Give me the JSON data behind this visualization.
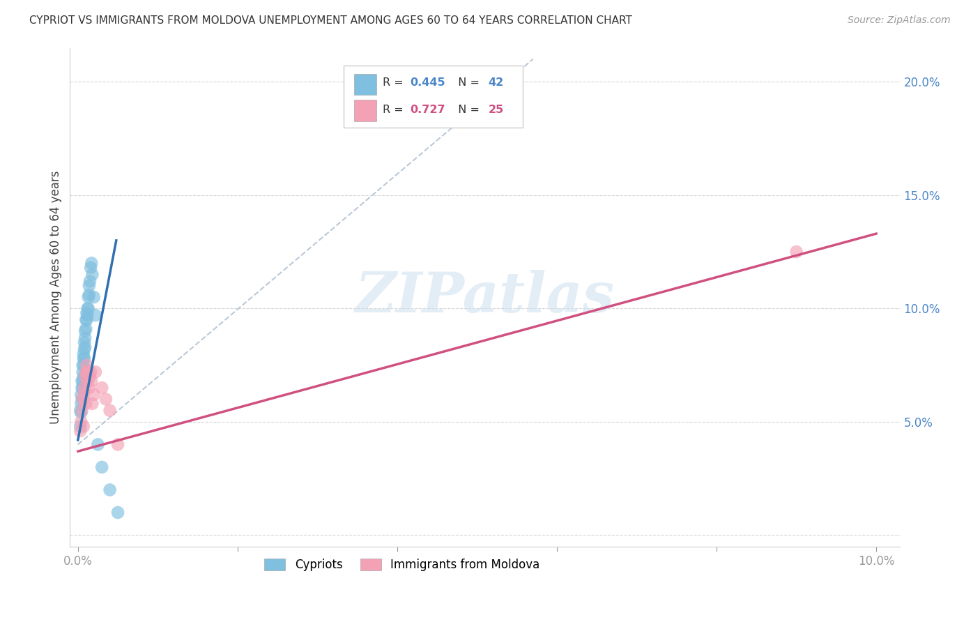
{
  "title": "CYPRIOT VS IMMIGRANTS FROM MOLDOVA UNEMPLOYMENT AMONG AGES 60 TO 64 YEARS CORRELATION CHART",
  "source": "Source: ZipAtlas.com",
  "ylabel": "Unemployment Among Ages 60 to 64 years",
  "xlim": [
    0,
    0.1
  ],
  "ylim": [
    0,
    0.21
  ],
  "xticks": [
    0.0,
    0.02,
    0.04,
    0.06,
    0.08,
    0.1
  ],
  "yticks": [
    0.0,
    0.05,
    0.1,
    0.15,
    0.2
  ],
  "watermark": "ZIPatlas",
  "cypriot_color": "#7fbfdf",
  "moldova_color": "#f4a0b5",
  "cypriot_line_color": "#3070b0",
  "moldova_line_color": "#d05080",
  "cypriot_R": 0.445,
  "cypriot_N": 42,
  "moldova_R": 0.727,
  "moldova_N": 25,
  "legend_label1": "Cypriots",
  "legend_label2": "Immigrants from Moldova",
  "background_color": "#ffffff",
  "grid_color": "#cccccc",
  "cypriot_x": [
    0.0003,
    0.0003,
    0.0004,
    0.0004,
    0.0004,
    0.0005,
    0.0005,
    0.0005,
    0.0006,
    0.0006,
    0.0006,
    0.0006,
    0.0007,
    0.0007,
    0.0007,
    0.0007,
    0.0008,
    0.0008,
    0.0008,
    0.0009,
    0.0009,
    0.0009,
    0.001,
    0.001,
    0.0011,
    0.0011,
    0.0012,
    0.0012,
    0.0013,
    0.0013,
    0.0014,
    0.0014,
    0.0015,
    0.0016,
    0.0017,
    0.0018,
    0.002,
    0.0022,
    0.0025,
    0.003,
    0.004,
    0.005
  ],
  "cypriot_y": [
    0.055,
    0.048,
    0.062,
    0.058,
    0.054,
    0.068,
    0.065,
    0.06,
    0.075,
    0.072,
    0.068,
    0.065,
    0.08,
    0.078,
    0.075,
    0.07,
    0.085,
    0.082,
    0.078,
    0.09,
    0.087,
    0.083,
    0.095,
    0.091,
    0.098,
    0.095,
    0.1,
    0.097,
    0.105,
    0.1,
    0.11,
    0.106,
    0.112,
    0.118,
    0.12,
    0.115,
    0.105,
    0.097,
    0.04,
    0.03,
    0.02,
    0.01
  ],
  "moldova_x": [
    0.0003,
    0.0004,
    0.0005,
    0.0006,
    0.0007,
    0.0007,
    0.0008,
    0.0009,
    0.001,
    0.001,
    0.0011,
    0.0012,
    0.0013,
    0.0014,
    0.0015,
    0.0016,
    0.0017,
    0.0018,
    0.002,
    0.0022,
    0.003,
    0.0035,
    0.004,
    0.005,
    0.09
  ],
  "moldova_y": [
    0.046,
    0.05,
    0.055,
    0.06,
    0.062,
    0.048,
    0.065,
    0.07,
    0.072,
    0.058,
    0.075,
    0.068,
    0.072,
    0.065,
    0.07,
    0.072,
    0.068,
    0.058,
    0.062,
    0.072,
    0.065,
    0.06,
    0.055,
    0.04,
    0.125
  ],
  "diag_line_color": "#aabbcc",
  "title_fontsize": 11,
  "source_fontsize": 10,
  "tick_label_fontsize": 12,
  "ylabel_fontsize": 12
}
